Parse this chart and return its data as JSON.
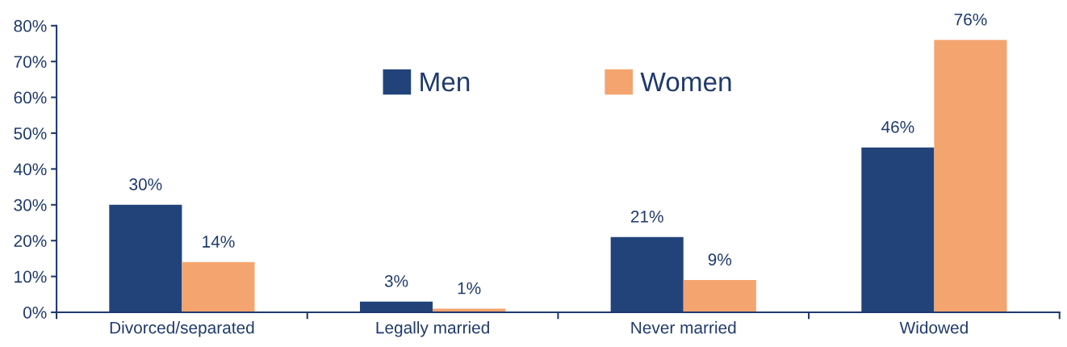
{
  "chart_data": {
    "type": "bar",
    "categories": [
      "Divorced/separated",
      "Legally married",
      "Never married",
      "Widowed"
    ],
    "series": [
      {
        "name": "Men",
        "color": "#22437a",
        "values": [
          30,
          3,
          21,
          46
        ],
        "value_labels": [
          "30%",
          "3%",
          "21%",
          "46%"
        ]
      },
      {
        "name": "Women",
        "color": "#f4a46e",
        "values": [
          14,
          1,
          9,
          76
        ],
        "value_labels": [
          "14%",
          "1%",
          "9%",
          "76%"
        ]
      }
    ],
    "ylim": [
      0,
      80
    ],
    "yticks": [
      {
        "value": 0,
        "label": "0%"
      },
      {
        "value": 10,
        "label": "10%"
      },
      {
        "value": 20,
        "label": "20%"
      },
      {
        "value": 30,
        "label": "30%"
      },
      {
        "value": 40,
        "label": "40%"
      },
      {
        "value": 50,
        "label": "50%"
      },
      {
        "value": 60,
        "label": "60%"
      },
      {
        "value": 70,
        "label": "70%"
      },
      {
        "value": 80,
        "label": "80%"
      }
    ],
    "grid": false,
    "legend": "top"
  }
}
